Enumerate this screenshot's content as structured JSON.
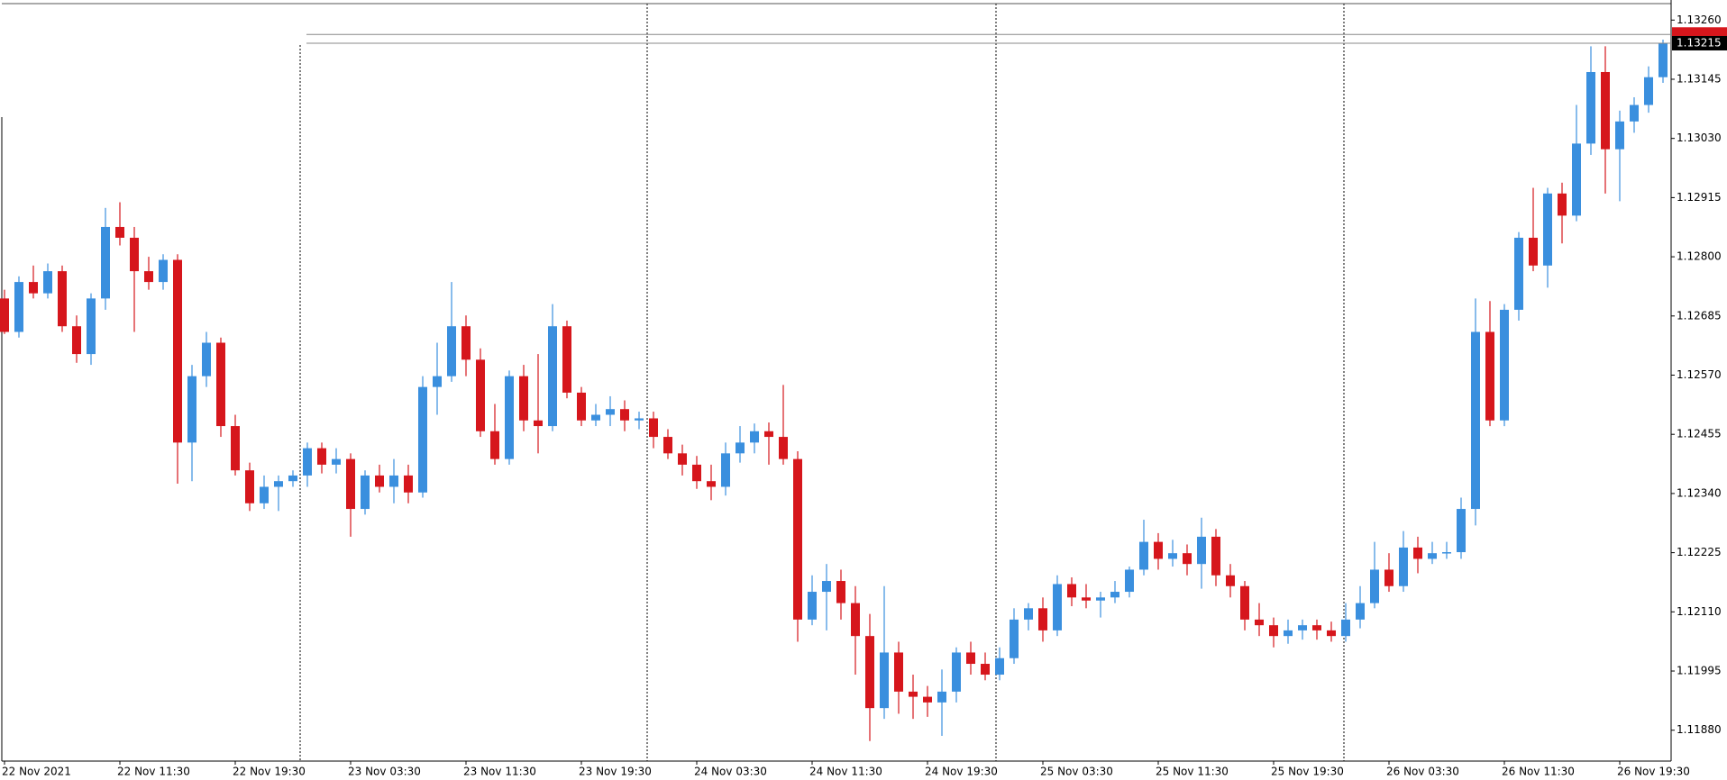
{
  "chart_data": {
    "type": "candlestick",
    "up_color": "#3a8fde",
    "down_color": "#d6161c",
    "ylim": [
      1.1182,
      1.13292
    ],
    "yticks": [
      {
        "value": 1.1326,
        "label": "1.13260"
      },
      {
        "value": 1.13145,
        "label": "1.13145"
      },
      {
        "value": 1.1303,
        "label": "1.13030"
      },
      {
        "value": 1.12915,
        "label": "1.12915"
      },
      {
        "value": 1.128,
        "label": "1.12800"
      },
      {
        "value": 1.12685,
        "label": "1.12685"
      },
      {
        "value": 1.1257,
        "label": "1.12570"
      },
      {
        "value": 1.12455,
        "label": "1.12455"
      },
      {
        "value": 1.1234,
        "label": "1.12340"
      },
      {
        "value": 1.12225,
        "label": "1.12225"
      },
      {
        "value": 1.1211,
        "label": "1.12110"
      },
      {
        "value": 1.11995,
        "label": "1.11995"
      },
      {
        "value": 1.1188,
        "label": "1.11880"
      }
    ],
    "x_labels": [
      "22 Nov 2021",
      "22 Nov 11:30",
      "22 Nov 19:30",
      "23 Nov 03:30",
      "23 Nov 11:30",
      "23 Nov 19:30",
      "24 Nov 03:30",
      "24 Nov 11:30",
      "24 Nov 19:30",
      "25 Nov 03:30",
      "25 Nov 11:30",
      "25 Nov 19:30",
      "26 Nov 03:30",
      "26 Nov 11:30",
      "26 Nov 19:30"
    ],
    "current_price": {
      "value": 1.13215,
      "label": "1.13215"
    },
    "ask_price": 1.13232,
    "grid": false,
    "open": [
      1.12719,
      1.12654,
      1.12751,
      1.12729,
      1.12772,
      1.12665,
      1.12611,
      1.12719,
      1.12858,
      1.12837,
      1.12772,
      1.12751,
      1.12794,
      1.12439,
      1.12568,
      1.12633,
      1.12471,
      1.12385,
      1.12321,
      1.12353,
      1.12364,
      1.12375,
      1.12428,
      1.12396,
      1.12407,
      1.1231,
      1.12375,
      1.12353,
      1.12375,
      1.12342,
      1.12547,
      1.12568,
      1.12665,
      1.126,
      1.12461,
      1.12407,
      1.12568,
      1.12482,
      1.12471,
      1.12665,
      1.12536,
      1.12482,
      1.12493,
      1.12504,
      1.12482,
      1.12486,
      1.1245,
      1.12418,
      1.12396,
      1.12364,
      1.12353,
      1.12418,
      1.12439,
      1.12461,
      1.1245,
      1.12407,
      1.12095,
      1.12149,
      1.1217,
      1.12127,
      1.12063,
      1.11923,
      1.12031,
      1.11955,
      1.11945,
      1.11934,
      1.11955,
      1.12031,
      1.12009,
      1.11988,
      1.1202,
      1.12095,
      1.12117,
      1.12074,
      1.12164,
      1.12138,
      1.12132,
      1.12138,
      1.12149,
      1.12192,
      1.12246,
      1.12213,
      1.12224,
      1.12203,
      1.12256,
      1.12181,
      1.1216,
      1.12095,
      1.12084,
      1.12063,
      1.12074,
      1.12084,
      1.12074,
      1.12063,
      1.12095,
      1.12127,
      1.12192,
      1.1216,
      1.12235,
      1.12213,
      1.12224,
      1.12226,
      1.1231,
      1.12654,
      1.12482,
      1.12697,
      1.12837,
      1.12783,
      1.12923,
      1.1288,
      1.1302,
      1.13159,
      1.13009,
      1.13063,
      1.13095,
      1.13149
    ],
    "high": [
      1.12736,
      1.12762,
      1.12783,
      1.12787,
      1.12783,
      1.12686,
      1.12729,
      1.12895,
      1.12906,
      1.12858,
      1.128,
      1.12805,
      1.12805,
      1.1259,
      1.12654,
      1.12643,
      1.12493,
      1.124,
      1.12375,
      1.12375,
      1.12385,
      1.12439,
      1.12439,
      1.12428,
      1.12418,
      1.12385,
      1.12396,
      1.12407,
      1.12396,
      1.12568,
      1.12633,
      1.12751,
      1.12686,
      1.12622,
      1.12514,
      1.12579,
      1.1259,
      1.12611,
      1.12708,
      1.12676,
      1.12547,
      1.12514,
      1.12529,
      1.12521,
      1.12499,
      1.12499,
      1.12465,
      1.12435,
      1.12413,
      1.12396,
      1.12439,
      1.12471,
      1.12476,
      1.12478,
      1.12551,
      1.12422,
      1.12181,
      1.12203,
      1.12192,
      1.1216,
      1.12106,
      1.1216,
      1.12052,
      1.11988,
      1.11966,
      1.11998,
      1.12041,
      1.12052,
      1.12031,
      1.12041,
      1.12117,
      1.12127,
      1.12138,
      1.12181,
      1.12177,
      1.12164,
      1.12149,
      1.1217,
      1.12198,
      1.12289,
      1.12263,
      1.1225,
      1.12241,
      1.12293,
      1.12271,
      1.12203,
      1.1217,
      1.12127,
      1.12099,
      1.12095,
      1.12095,
      1.12095,
      1.12091,
      1.12127,
      1.1216,
      1.12246,
      1.12224,
      1.12267,
      1.12256,
      1.12246,
      1.12246,
      1.12332,
      1.12719,
      1.12714,
      1.12708,
      1.12848,
      1.12934,
      1.12934,
      1.12944,
      1.13095,
      1.13209,
      1.13209,
      1.13084,
      1.1311,
      1.1317,
      1.13222
    ],
    "low": [
      1.1265,
      1.12643,
      1.12719,
      1.12719,
      1.12654,
      1.12594,
      1.1259,
      1.12697,
      1.12822,
      1.12654,
      1.12736,
      1.12736,
      1.12359,
      1.12364,
      1.12547,
      1.1245,
      1.12375,
      1.12306,
      1.1231,
      1.12306,
      1.12353,
      1.12353,
      1.12379,
      1.12379,
      1.12256,
      1.12299,
      1.12342,
      1.12321,
      1.12321,
      1.12332,
      1.12493,
      1.12557,
      1.12568,
      1.1245,
      1.12396,
      1.12396,
      1.12461,
      1.12418,
      1.12461,
      1.12525,
      1.12471,
      1.12471,
      1.12471,
      1.12461,
      1.12465,
      1.12428,
      1.12407,
      1.12375,
      1.12349,
      1.12327,
      1.12336,
      1.124,
      1.12418,
      1.12396,
      1.12396,
      1.12052,
      1.12084,
      1.12074,
      1.12095,
      1.11988,
      1.11859,
      1.11902,
      1.11912,
      1.11902,
      1.11906,
      1.11869,
      1.11934,
      1.11988,
      1.11977,
      1.11977,
      1.12009,
      1.12074,
      1.12052,
      1.12063,
      1.12121,
      1.12117,
      1.12099,
      1.12127,
      1.12138,
      1.12181,
      1.12192,
      1.12198,
      1.12181,
      1.12155,
      1.1216,
      1.12138,
      1.12074,
      1.12063,
      1.12041,
      1.12048,
      1.12056,
      1.12056,
      1.12052,
      1.12052,
      1.12078,
      1.12117,
      1.12149,
      1.12149,
      1.12185,
      1.12203,
      1.12213,
      1.12213,
      1.12278,
      1.12471,
      1.12471,
      1.12676,
      1.12772,
      1.1274,
      1.12826,
      1.12869,
      1.12998,
      1.12923,
      1.12908,
      1.13041,
      1.1308,
      1.13138
    ],
    "close": [
      1.12654,
      1.12751,
      1.12729,
      1.12772,
      1.12665,
      1.12611,
      1.12719,
      1.12858,
      1.12837,
      1.12772,
      1.12751,
      1.12794,
      1.12439,
      1.12568,
      1.12633,
      1.12471,
      1.12385,
      1.12321,
      1.12353,
      1.12364,
      1.12375,
      1.12428,
      1.12396,
      1.12407,
      1.1231,
      1.12375,
      1.12353,
      1.12375,
      1.12342,
      1.12547,
      1.12568,
      1.12665,
      1.126,
      1.12461,
      1.12407,
      1.12568,
      1.12482,
      1.12471,
      1.12665,
      1.12536,
      1.12482,
      1.12493,
      1.12504,
      1.12482,
      1.12486,
      1.1245,
      1.12418,
      1.12396,
      1.12364,
      1.12353,
      1.12418,
      1.12439,
      1.12461,
      1.1245,
      1.12407,
      1.12095,
      1.12149,
      1.1217,
      1.12127,
      1.12063,
      1.11923,
      1.12031,
      1.11955,
      1.11945,
      1.11934,
      1.11955,
      1.12031,
      1.12009,
      1.11988,
      1.1202,
      1.12095,
      1.12117,
      1.12074,
      1.12164,
      1.12138,
      1.12132,
      1.12138,
      1.12149,
      1.12192,
      1.12246,
      1.12213,
      1.12224,
      1.12203,
      1.12256,
      1.12181,
      1.1216,
      1.12095,
      1.12084,
      1.12063,
      1.12074,
      1.12084,
      1.12074,
      1.12063,
      1.12095,
      1.12127,
      1.12192,
      1.1216,
      1.12235,
      1.12213,
      1.12224,
      1.12226,
      1.1231,
      1.12654,
      1.12482,
      1.12697,
      1.12837,
      1.12783,
      1.12923,
      1.1288,
      1.1302,
      1.13159,
      1.13009,
      1.13063,
      1.13095,
      1.13149,
      1.13215
    ]
  }
}
